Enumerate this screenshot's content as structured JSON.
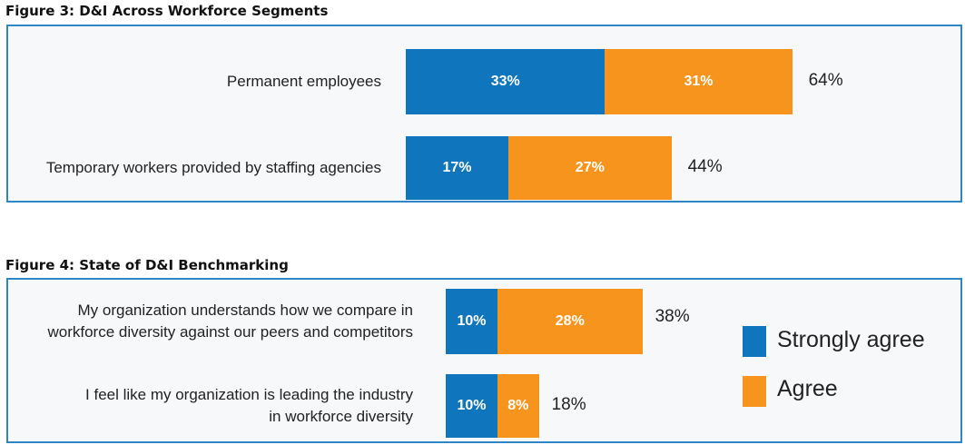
{
  "colors": {
    "strongly_agree": "#0f75bd",
    "agree": "#f7941d",
    "panel_border": "#2f86c6"
  },
  "chart_data": [
    {
      "type": "bar",
      "stacked": true,
      "orientation": "horizontal",
      "title": "Figure 3: D&I Across Workforce Segments",
      "categories": [
        "Permanent employees",
        "Temporary workers provided by staffing agencies"
      ],
      "series": [
        {
          "name": "Strongly agree",
          "values": [
            33,
            17
          ],
          "labels": [
            "33%",
            "17%"
          ]
        },
        {
          "name": "Agree",
          "values": [
            31,
            27
          ],
          "labels": [
            "31%",
            "27%"
          ]
        }
      ],
      "totals": [
        "64%",
        "44%"
      ]
    },
    {
      "type": "bar",
      "stacked": true,
      "orientation": "horizontal",
      "title": "Figure 4: State of D&I Benchmarking",
      "categories": [
        [
          "My organization understands how we compare in",
          "workforce diversity against our peers and competitors"
        ],
        [
          "I feel like my organization is leading the industry",
          "in workforce diversity"
        ]
      ],
      "series": [
        {
          "name": "Strongly agree",
          "values": [
            10,
            10
          ],
          "labels": [
            "10%",
            "10%"
          ]
        },
        {
          "name": "Agree",
          "values": [
            28,
            8
          ],
          "labels": [
            "28%",
            "8%"
          ]
        }
      ],
      "totals": [
        "38%",
        "18%"
      ],
      "legend": {
        "position": "right",
        "items": [
          "Strongly agree",
          "Agree"
        ]
      }
    }
  ]
}
